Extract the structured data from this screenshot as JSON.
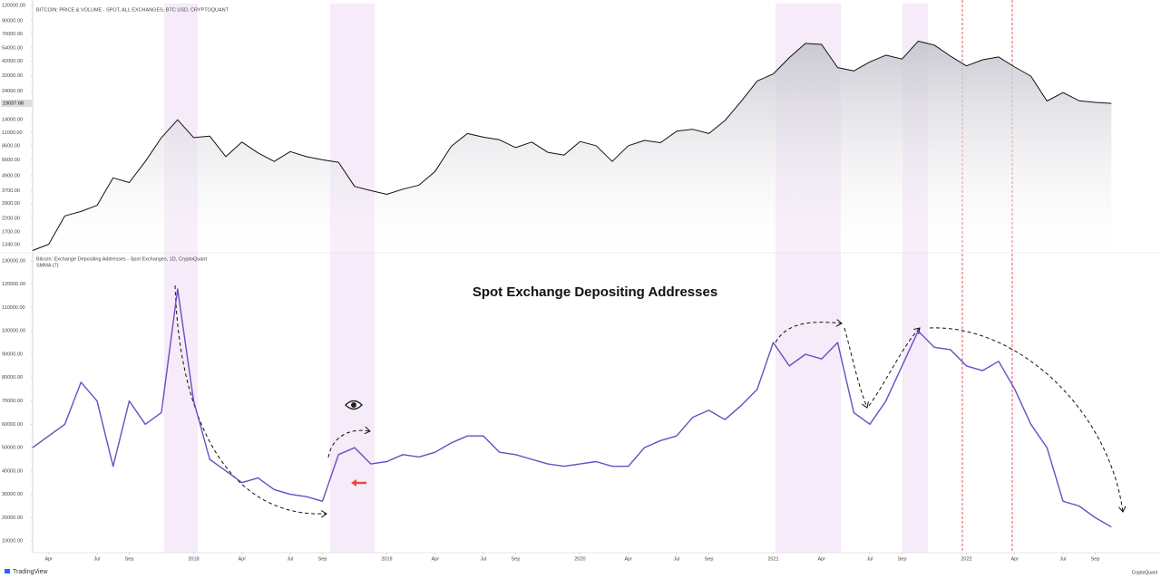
{
  "chart_data": [
    {
      "type": "area",
      "title": "BITCOIN: PRICE & VOLUME - SPOT, ALL EXCHANGES, BTC USD, CRYPTOQUANT",
      "log_y": true,
      "color": "#111111",
      "fill": "#c9c9d2",
      "x": [
        "2017-03",
        "2017-04",
        "2017-05",
        "2017-06",
        "2017-07",
        "2017-08",
        "2017-09",
        "2017-10",
        "2017-11",
        "2017-12",
        "2018-01",
        "2018-02",
        "2018-03",
        "2018-04",
        "2018-05",
        "2018-06",
        "2018-07",
        "2018-08",
        "2018-09",
        "2018-10",
        "2018-11",
        "2018-12",
        "2019-01",
        "2019-02",
        "2019-03",
        "2019-04",
        "2019-05",
        "2019-06",
        "2019-07",
        "2019-08",
        "2019-09",
        "2019-10",
        "2019-11",
        "2019-12",
        "2020-01",
        "2020-02",
        "2020-03",
        "2020-04",
        "2020-05",
        "2020-06",
        "2020-07",
        "2020-08",
        "2020-09",
        "2020-10",
        "2020-11",
        "2020-12",
        "2021-01",
        "2021-02",
        "2021-03",
        "2021-04",
        "2021-05",
        "2021-06",
        "2021-07",
        "2021-08",
        "2021-09",
        "2021-10",
        "2021-11",
        "2021-12",
        "2022-01",
        "2022-02",
        "2022-03",
        "2022-04",
        "2022-05",
        "2022-06",
        "2022-07",
        "2022-08",
        "2022-09",
        "2022-10"
      ],
      "series": [
        {
          "values": [
            1200,
            1350,
            2300,
            2500,
            2800,
            4700,
            4300,
            6400,
            10000,
            14000,
            10000,
            10300,
            7000,
            9200,
            7500,
            6400,
            7700,
            7000,
            6600,
            6300,
            4000,
            3700,
            3450,
            3800,
            4100,
            5300,
            8500,
            10800,
            10100,
            9600,
            8300,
            9200,
            7600,
            7200,
            9300,
            8600,
            6400,
            8600,
            9500,
            9100,
            11300,
            11700,
            10800,
            13800,
            19700,
            29000,
            33100,
            45000,
            58800,
            57700,
            37300,
            35000,
            41500,
            47100,
            43800,
            61300,
            57000,
            46300,
            38500,
            43200,
            45500,
            37700,
            31800,
            19900,
            23300,
            20000,
            19400,
            19037.68
          ]
        }
      ],
      "current_price": {
        "value": 19037.68,
        "label": "19037.68"
      },
      "xlim": [
        "2017-03",
        "2022-11"
      ],
      "ylim": [
        1170,
        132800
      ],
      "yticks": [
        {
          "value": 120000,
          "label": "120000.00"
        },
        {
          "value": 90000,
          "label": "90000.00"
        },
        {
          "value": 70000,
          "label": "70000.00"
        },
        {
          "value": 54000,
          "label": "54000.00"
        },
        {
          "value": 42000,
          "label": "42000.00"
        },
        {
          "value": 32000,
          "label": "32000.00"
        },
        {
          "value": 24000,
          "label": "24000.00"
        },
        {
          "value": 14000,
          "label": "14000.00"
        },
        {
          "value": 11000,
          "label": "11000.00"
        },
        {
          "value": 8600,
          "label": "8600.00"
        },
        {
          "value": 6600,
          "label": "6600.00"
        },
        {
          "value": 4900,
          "label": "4900.00"
        },
        {
          "value": 3700,
          "label": "3700.00"
        },
        {
          "value": 2900,
          "label": "2900.00"
        },
        {
          "value": 2200,
          "label": "2200.00"
        },
        {
          "value": 1700,
          "label": "1700.00"
        },
        {
          "value": 1340,
          "label": "1340.00"
        }
      ]
    },
    {
      "type": "line",
      "title": "Spot Exchange Depositing Addresses",
      "subtitle": "Bitcoin: Exchange Depositing Addresses - Spot Exchanges, 1D, CryptoQuant",
      "indicator": "SMMA (7)",
      "x": [
        "2017-03",
        "2017-04",
        "2017-05",
        "2017-06",
        "2017-07",
        "2017-08",
        "2017-09",
        "2017-10",
        "2017-11",
        "2017-12",
        "2018-01",
        "2018-02",
        "2018-03",
        "2018-04",
        "2018-05",
        "2018-06",
        "2018-07",
        "2018-08",
        "2018-09",
        "2018-10",
        "2018-11",
        "2018-12",
        "2019-01",
        "2019-02",
        "2019-03",
        "2019-04",
        "2019-05",
        "2019-06",
        "2019-07",
        "2019-08",
        "2019-09",
        "2019-10",
        "2019-11",
        "2019-12",
        "2020-01",
        "2020-02",
        "2020-03",
        "2020-04",
        "2020-05",
        "2020-06",
        "2020-07",
        "2020-08",
        "2020-09",
        "2020-10",
        "2020-11",
        "2020-12",
        "2021-01",
        "2021-02",
        "2021-03",
        "2021-04",
        "2021-05",
        "2021-06",
        "2021-07",
        "2021-08",
        "2021-09",
        "2021-10",
        "2021-11",
        "2021-12",
        "2022-01",
        "2022-02",
        "2022-03",
        "2022-04",
        "2022-05",
        "2022-06",
        "2022-07",
        "2022-08",
        "2022-09",
        "2022-10"
      ],
      "series": [
        {
          "color": "#6a4cc4",
          "values": [
            50000,
            55000,
            60000,
            78000,
            70000,
            42000,
            70000,
            60000,
            65000,
            118000,
            70000,
            45000,
            40000,
            35000,
            37000,
            32000,
            30000,
            29000,
            27000,
            47000,
            50000,
            43000,
            44000,
            47000,
            46000,
            48000,
            52000,
            55000,
            55000,
            48000,
            47000,
            45000,
            43000,
            42000,
            43000,
            44000,
            42000,
            42000,
            50000,
            53000,
            55000,
            63000,
            66000,
            62000,
            68000,
            75000,
            95000,
            85000,
            90000,
            88000,
            95000,
            65000,
            60000,
            70000,
            85000,
            100000,
            93000,
            92000,
            85000,
            83000,
            87000,
            75000,
            60000,
            50000,
            27000,
            25000,
            20000,
            16000
          ]
        }
      ],
      "xlim": [
        "2017-03",
        "2022-11"
      ],
      "ylim": [
        5000,
        133100
      ],
      "yticks": [
        {
          "value": 130000,
          "label": "130000.00"
        },
        {
          "value": 120000,
          "label": "120000.00"
        },
        {
          "value": 110000,
          "label": "110000.00"
        },
        {
          "value": 100000,
          "label": "100000.00"
        },
        {
          "value": 90000,
          "label": "90000.00"
        },
        {
          "value": 80000,
          "label": "80000.00"
        },
        {
          "value": 70000,
          "label": "70000.00"
        },
        {
          "value": 60000,
          "label": "60000.00"
        },
        {
          "value": 50000,
          "label": "50000.00"
        },
        {
          "value": 40000,
          "label": "40000.00"
        },
        {
          "value": 30000,
          "label": "30000.00"
        },
        {
          "value": 20000,
          "label": "20000.00"
        },
        {
          "value": 10000,
          "label": "10000.00"
        }
      ],
      "xticks": [
        {
          "value": "2017-04",
          "label": "Apr"
        },
        {
          "value": "2017-07",
          "label": "Jul"
        },
        {
          "value": "2017-09",
          "label": "Sep"
        },
        {
          "value": "2018-01",
          "label": "2018"
        },
        {
          "value": "2018-04",
          "label": "Apr"
        },
        {
          "value": "2018-07",
          "label": "Jul"
        },
        {
          "value": "2018-09",
          "label": "Sep"
        },
        {
          "value": "2019-01",
          "label": "2019"
        },
        {
          "value": "2019-04",
          "label": "Apr"
        },
        {
          "value": "2019-07",
          "label": "Jul"
        },
        {
          "value": "2019-09",
          "label": "Sep"
        },
        {
          "value": "2020-01",
          "label": "2020"
        },
        {
          "value": "2020-04",
          "label": "Apr"
        },
        {
          "value": "2020-07",
          "label": "Jul"
        },
        {
          "value": "2020-09",
          "label": "Sep"
        },
        {
          "value": "2021-01",
          "label": "2021"
        },
        {
          "value": "2021-04",
          "label": "Apr"
        },
        {
          "value": "2021-07",
          "label": "Jul"
        },
        {
          "value": "2021-09",
          "label": "Sep"
        },
        {
          "value": "2022-01",
          "label": "2022"
        },
        {
          "value": "2022-04",
          "label": "Apr"
        },
        {
          "value": "2022-07",
          "label": "Jul"
        },
        {
          "value": "2022-09",
          "label": "Sep"
        }
      ]
    }
  ],
  "footer": {
    "left": "TradingView",
    "right": "CryptoQuant"
  }
}
